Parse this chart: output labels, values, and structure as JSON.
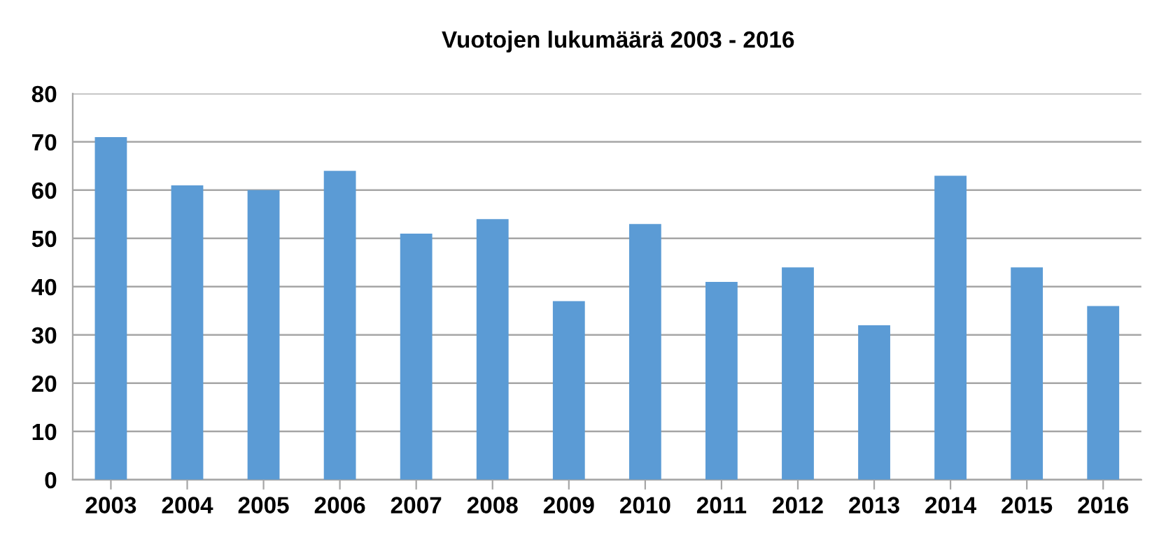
{
  "chart_data": {
    "type": "bar",
    "title": "Vuotojen lukumäärä 2003 - 2016",
    "categories": [
      "2003",
      "2004",
      "2005",
      "2006",
      "2007",
      "2008",
      "2009",
      "2010",
      "2011",
      "2012",
      "2013",
      "2014",
      "2015",
      "2016"
    ],
    "values": [
      71,
      61,
      60,
      64,
      51,
      54,
      37,
      53,
      41,
      44,
      32,
      63,
      44,
      36
    ],
    "color": "#5b9bd5",
    "ylim": [
      0,
      80
    ],
    "yticks": [
      0,
      10,
      20,
      30,
      40,
      50,
      60,
      70,
      80
    ],
    "grid": "y"
  }
}
